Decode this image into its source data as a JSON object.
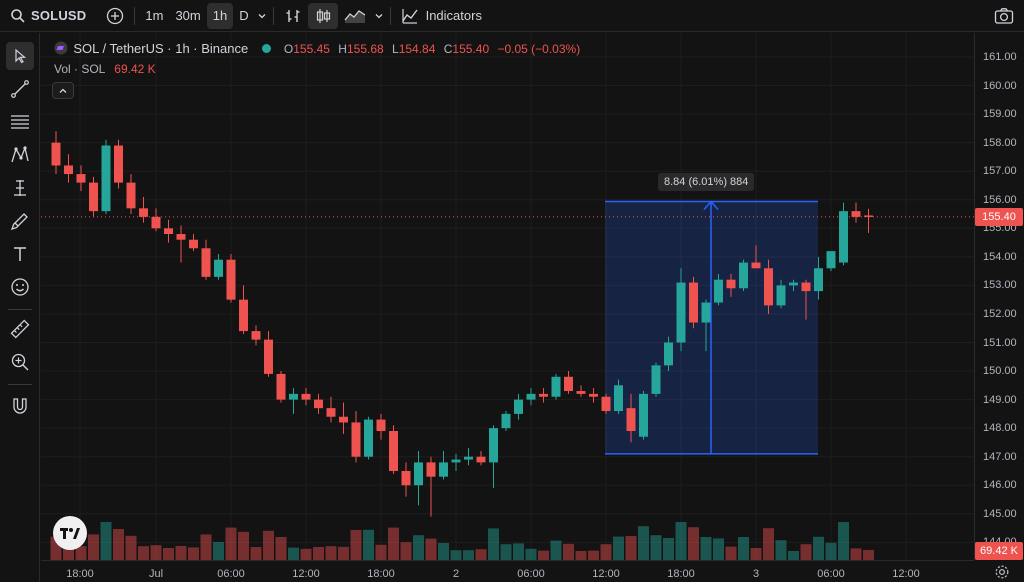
{
  "toolbar": {
    "symbol": "SOLUSD",
    "intervals": [
      "1m",
      "30m",
      "1h",
      "D"
    ],
    "active_interval": "1h",
    "indicators_label": "Indicators"
  },
  "legend": {
    "title": "SOL / TetherUS · 1h · Binance",
    "o_label": "O",
    "o_value": "155.45",
    "h_label": "H",
    "h_value": "155.68",
    "l_label": "L",
    "l_value": "154.84",
    "c_label": "C",
    "c_value": "155.40",
    "change": "−0.05 (−0.03%)",
    "vol_label": "Vol · SOL",
    "vol_value": "69.42 K"
  },
  "measure": {
    "label": "8.84 (6.01%) 884"
  },
  "price_scale": {
    "labels": [
      "161.00",
      "160.00",
      "159.00",
      "158.00",
      "157.00",
      "156.00",
      "155.00",
      "154.00",
      "153.00",
      "152.00",
      "151.00",
      "150.00",
      "149.00",
      "148.00",
      "147.00",
      "146.00",
      "145.00",
      "144.00"
    ],
    "current_price": "155.40",
    "current_volume": "69.42 K"
  },
  "time_scale": {
    "labels": [
      "18:00",
      "Jul",
      "06:00",
      "12:00",
      "18:00",
      "2",
      "06:00",
      "12:00",
      "18:00",
      "3",
      "06:00",
      "12:00"
    ]
  },
  "colors": {
    "up": "#26a69a",
    "down": "#ef5350",
    "measure": "#2962ff",
    "background": "#131313"
  },
  "icons": {
    "search": "search-icon",
    "add": "plus-circle-icon",
    "chart_type": "candles-icon",
    "indicators": "indicators-icon",
    "camera": "camera-icon",
    "settings": "settings-icon"
  },
  "chart_data": {
    "type": "candlestick",
    "title": "SOL / TetherUS · 1h · Binance",
    "ylim": [
      144,
      161
    ],
    "x": [
      "18:00",
      "Jul",
      "06:00",
      "12:00",
      "18:00",
      "2",
      "06:00",
      "12:00",
      "18:00",
      "3",
      "06:00",
      "12:00"
    ],
    "ohlc": [
      [
        158.0,
        158.4,
        156.9,
        157.2
      ],
      [
        157.2,
        157.6,
        156.6,
        156.9
      ],
      [
        156.9,
        157.2,
        156.3,
        156.6
      ],
      [
        156.6,
        156.8,
        155.4,
        155.6
      ],
      [
        155.6,
        158.1,
        155.5,
        157.9
      ],
      [
        157.9,
        158.1,
        156.4,
        156.6
      ],
      [
        156.6,
        156.9,
        155.5,
        155.7
      ],
      [
        155.7,
        156.1,
        155.2,
        155.4
      ],
      [
        155.4,
        155.7,
        154.9,
        155.0
      ],
      [
        155.0,
        155.3,
        154.5,
        154.8
      ],
      [
        154.8,
        155.1,
        153.8,
        154.6
      ],
      [
        154.6,
        154.8,
        154.2,
        154.3
      ],
      [
        154.3,
        154.6,
        153.2,
        153.3
      ],
      [
        153.3,
        154.1,
        153.2,
        153.9
      ],
      [
        153.9,
        154.1,
        152.4,
        152.5
      ],
      [
        152.5,
        153.0,
        151.3,
        151.4
      ],
      [
        151.4,
        151.6,
        150.9,
        151.1
      ],
      [
        151.1,
        151.4,
        149.8,
        149.9
      ],
      [
        149.9,
        150.0,
        148.9,
        149.0
      ],
      [
        149.0,
        149.4,
        148.5,
        149.2
      ],
      [
        149.2,
        149.4,
        148.8,
        149.0
      ],
      [
        149.0,
        149.2,
        148.5,
        148.7
      ],
      [
        148.7,
        149.1,
        148.2,
        148.4
      ],
      [
        148.4,
        148.9,
        147.8,
        148.2
      ],
      [
        148.2,
        148.6,
        146.8,
        147.0
      ],
      [
        147.0,
        148.4,
        146.9,
        148.3
      ],
      [
        148.3,
        148.5,
        147.6,
        147.9
      ],
      [
        147.9,
        148.1,
        146.4,
        146.5
      ],
      [
        146.5,
        146.8,
        145.6,
        146.0
      ],
      [
        146.0,
        147.2,
        145.3,
        146.8
      ],
      [
        146.8,
        147.0,
        144.9,
        146.3
      ],
      [
        146.3,
        147.2,
        146.2,
        146.8
      ],
      [
        146.8,
        147.1,
        146.5,
        146.9
      ],
      [
        146.9,
        147.3,
        146.7,
        147.0
      ],
      [
        147.0,
        147.2,
        146.7,
        146.8
      ],
      [
        146.8,
        148.1,
        145.9,
        148.0
      ],
      [
        148.0,
        148.6,
        147.9,
        148.5
      ],
      [
        148.5,
        149.2,
        148.3,
        149.0
      ],
      [
        149.0,
        149.4,
        148.8,
        149.2
      ],
      [
        149.2,
        149.4,
        148.9,
        149.1
      ],
      [
        149.1,
        149.9,
        149.0,
        149.8
      ],
      [
        149.8,
        150.0,
        149.2,
        149.3
      ],
      [
        149.3,
        149.5,
        149.1,
        149.2
      ],
      [
        149.2,
        149.4,
        148.9,
        149.1
      ],
      [
        149.1,
        149.2,
        148.5,
        148.6
      ],
      [
        148.6,
        149.7,
        148.5,
        149.5
      ],
      [
        148.7,
        149.2,
        147.5,
        147.9
      ],
      [
        147.7,
        149.3,
        147.6,
        149.2
      ],
      [
        149.2,
        150.3,
        149.1,
        150.2
      ],
      [
        150.2,
        151.2,
        150.0,
        151.0
      ],
      [
        151.0,
        153.6,
        150.7,
        153.1
      ],
      [
        153.1,
        153.3,
        151.5,
        151.7
      ],
      [
        151.7,
        152.5,
        150.7,
        152.4
      ],
      [
        152.4,
        153.4,
        152.3,
        153.2
      ],
      [
        153.2,
        153.4,
        152.6,
        152.9
      ],
      [
        152.9,
        153.9,
        152.8,
        153.8
      ],
      [
        153.8,
        154.4,
        153.6,
        153.6
      ],
      [
        153.6,
        153.9,
        152.0,
        152.3
      ],
      [
        152.3,
        153.2,
        152.2,
        153.0
      ],
      [
        153.0,
        153.2,
        152.8,
        153.1
      ],
      [
        153.1,
        153.2,
        151.8,
        152.8
      ],
      [
        152.8,
        154.0,
        152.5,
        153.6
      ],
      [
        153.6,
        154.2,
        153.5,
        154.2
      ],
      [
        153.8,
        155.9,
        153.7,
        155.6
      ],
      [
        155.6,
        155.9,
        155.2,
        155.4
      ],
      [
        155.45,
        155.68,
        154.84,
        155.4
      ]
    ],
    "volume_last": "69.42 K",
    "measure_range": {
      "from": 147.1,
      "to": 155.94,
      "change": "8.84 (6.01%) 884"
    }
  }
}
